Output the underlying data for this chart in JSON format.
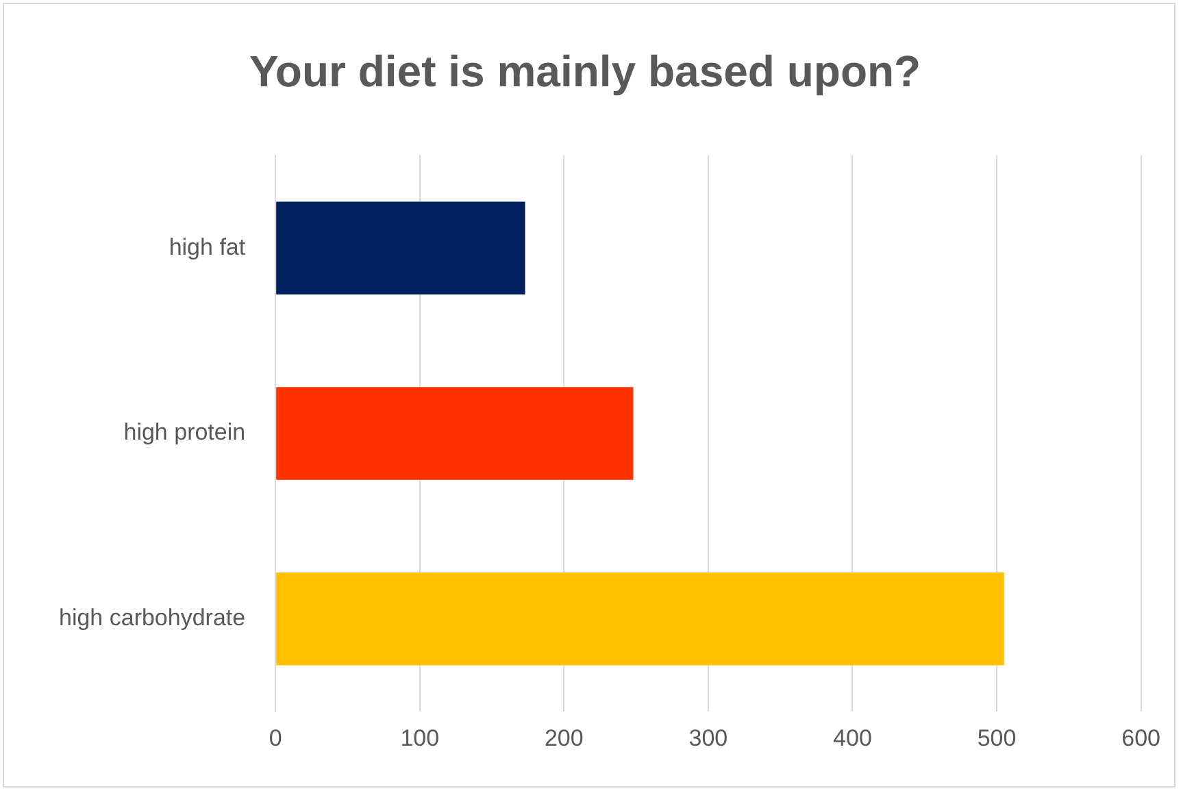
{
  "chart_data": {
    "type": "bar",
    "orientation": "horizontal",
    "title": "Your diet is mainly based upon?",
    "categories": [
      "high fat",
      "high protein",
      "high carbohydrate"
    ],
    "values": [
      173,
      248,
      505
    ],
    "colors": [
      "#002060",
      "#ff3300",
      "#ffc000"
    ],
    "xlim": [
      0,
      600
    ],
    "xticks": [
      0,
      100,
      200,
      300,
      400,
      500,
      600
    ],
    "grid": "x",
    "legend": false
  }
}
